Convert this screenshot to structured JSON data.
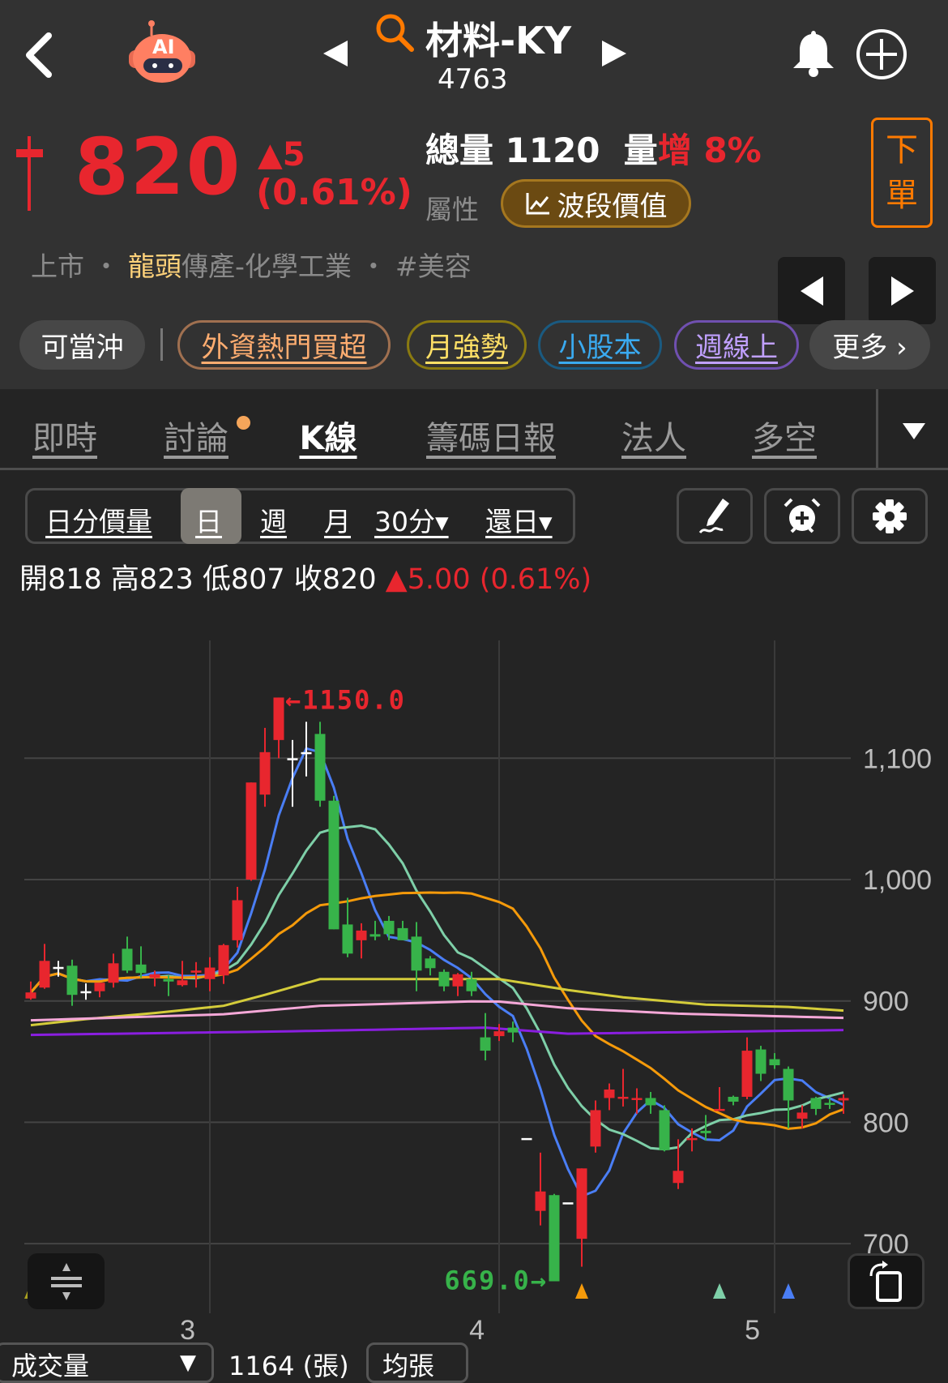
{
  "header": {
    "title": "材料-KY",
    "code": "4763",
    "ai_label": "AI",
    "icons": [
      "back-icon",
      "ai-robot-icon",
      "prev-stock-icon",
      "search-icon",
      "next-stock-icon",
      "bell-icon",
      "add-circle-icon"
    ]
  },
  "quote": {
    "price": "820",
    "change": "▲5",
    "change_pct": "(0.61%)",
    "total_volume_label": "總量",
    "total_volume": "1120",
    "vol_inc_label_a": "量",
    "vol_inc_label_b": "增",
    "vol_inc_value": "8%",
    "attr_label": "屬性",
    "attr_button": "波段價值",
    "order_button": [
      "下",
      "單"
    ],
    "category": {
      "market": "上市",
      "sep": "・",
      "leader": "龍頭",
      "industry": "傳產-化學工業",
      "tag": "#美容"
    }
  },
  "chips": [
    {
      "label": "可當沖",
      "color": "#ffffff"
    },
    {
      "label": "外資熱門買超",
      "color": "#ffad70"
    },
    {
      "label": "月強勢",
      "color": "#ffe066"
    },
    {
      "label": "小股本",
      "color": "#3aaaf0"
    },
    {
      "label": "週線上",
      "color": "#c0a0ff"
    },
    {
      "label": "更多 ›",
      "color": "#ffffff"
    }
  ],
  "tabs": [
    {
      "label": "即時"
    },
    {
      "label": "討論",
      "dot": true
    },
    {
      "label": "K線",
      "active": true
    },
    {
      "label": "籌碼日報"
    },
    {
      "label": "法人"
    },
    {
      "label": "多空"
    }
  ],
  "period_selector": {
    "items": [
      "日分價量",
      "日",
      "週",
      "月",
      "30分▾",
      "還日▾"
    ],
    "selected": "日"
  },
  "ohlc": {
    "text": "開818 高823 低807 收820",
    "change": "▲5.00 (0.61%)"
  },
  "colors": {
    "up": "#e8262e",
    "down": "#37b34a",
    "flat": "#ffffff",
    "accent": "#ff7a00"
  },
  "chart_data": {
    "type": "candlestick",
    "y_ticks": [
      "1,100",
      "1,000",
      "900",
      "800",
      "700"
    ],
    "y_tick_values": [
      1100,
      1000,
      900,
      800,
      700
    ],
    "ylim": [
      669,
      1150
    ],
    "x_month_labels": [
      {
        "label": "3",
        "candle": 14
      },
      {
        "label": "4",
        "candle": 35
      },
      {
        "label": "5",
        "candle": 55
      }
    ],
    "grid": true,
    "candles_ohlc": [
      [
        902,
        916,
        901,
        907
      ],
      [
        911,
        947,
        910,
        933
      ],
      [
        928,
        933,
        920,
        928
      ],
      [
        929,
        934,
        896,
        905
      ],
      [
        908,
        914.5,
        901,
        908
      ],
      [
        908,
        915,
        903,
        915
      ],
      [
        915,
        939,
        911,
        931
      ],
      [
        943,
        953,
        923,
        925
      ],
      [
        930,
        945,
        919,
        923
      ],
      [
        919,
        925,
        912,
        922
      ],
      [
        918,
        921,
        904,
        916
      ],
      [
        913,
        933,
        912,
        917
      ],
      [
        924,
        932,
        911,
        925
      ],
      [
        918,
        936,
        908,
        927.5
      ],
      [
        921,
        947,
        914,
        946
      ],
      [
        950,
        994,
        944,
        983
      ],
      [
        1000,
        1080,
        999,
        1080
      ],
      [
        1070,
        1125,
        1060,
        1105
      ],
      [
        1115,
        1150,
        1100,
        1150
      ],
      [
        1100,
        1115,
        1060,
        1100
      ],
      [
        1105,
        1130,
        1085,
        1105
      ],
      [
        1120,
        1130,
        1060,
        1065
      ],
      [
        1065,
        1069,
        959,
        959
      ],
      [
        963,
        985,
        936,
        939
      ],
      [
        950,
        964,
        935,
        958
      ],
      [
        955,
        966,
        950,
        953
      ],
      [
        966,
        970,
        950,
        955
      ],
      [
        960,
        966,
        950,
        950
      ],
      [
        953,
        965,
        908,
        925
      ],
      [
        935,
        937,
        921,
        927
      ],
      [
        924,
        926,
        908,
        912
      ],
      [
        912,
        923,
        904,
        922
      ],
      [
        918,
        924,
        904,
        908
      ],
      [
        870,
        890,
        851,
        859
      ],
      [
        871,
        881,
        867,
        875
      ],
      [
        878,
        883,
        866,
        874
      ],
      [
        787,
        787,
        787,
        787
      ],
      [
        727,
        775,
        715,
        743
      ],
      [
        740,
        741,
        669,
        669
      ],
      [
        734,
        734,
        734,
        734
      ],
      [
        704,
        762,
        681,
        762
      ],
      [
        780,
        818,
        775,
        810
      ],
      [
        820,
        832,
        810,
        827
      ],
      [
        820,
        844,
        813,
        821
      ],
      [
        819,
        828,
        807,
        820
      ],
      [
        820,
        825,
        807,
        814
      ],
      [
        810,
        814,
        776,
        777
      ],
      [
        750,
        786,
        745,
        760
      ],
      [
        786,
        795,
        776,
        787
      ],
      [
        793,
        806,
        785,
        791
      ],
      [
        810,
        829,
        810,
        811
      ],
      [
        821,
        822,
        814,
        817
      ],
      [
        821,
        870,
        819,
        859
      ],
      [
        860,
        863,
        834,
        840
      ],
      [
        852,
        857,
        844,
        847
      ],
      [
        844,
        846,
        795,
        818
      ],
      [
        803,
        814,
        795,
        808
      ],
      [
        820,
        821,
        806,
        811
      ],
      [
        816,
        820,
        811,
        815
      ],
      [
        818,
        823,
        807,
        820
      ]
    ],
    "moving_averages": [
      {
        "color": "#4a7ef5",
        "period": 5
      },
      {
        "color": "#7ecfa8",
        "period": 10
      },
      {
        "color": "#f59a0a",
        "period": 20
      },
      {
        "color": "#d4cc3a",
        "points": [
          [
            1,
            880
          ],
          [
            5,
            885
          ],
          [
            10,
            890
          ],
          [
            15,
            896
          ],
          [
            18,
            905
          ],
          [
            22,
            918
          ],
          [
            35,
            918
          ],
          [
            40,
            909
          ],
          [
            44,
            903
          ],
          [
            50,
            897
          ],
          [
            56,
            895
          ],
          [
            60,
            892
          ]
        ]
      },
      {
        "color": "#f5a8d8",
        "points": [
          [
            1,
            884
          ],
          [
            15,
            889
          ],
          [
            22,
            896
          ],
          [
            33,
            899.6
          ],
          [
            35,
            899.5
          ],
          [
            40,
            894
          ],
          [
            48,
            889.5
          ],
          [
            60,
            886
          ]
        ]
      },
      {
        "color": "#8a1ee0",
        "points": [
          [
            1,
            872
          ],
          [
            20,
            875
          ],
          [
            34,
            878
          ],
          [
            40,
            873
          ],
          [
            60,
            876
          ]
        ]
      }
    ],
    "annotations": [
      {
        "text": "1150.0",
        "candle": 19,
        "arrow": "←",
        "color": "#e8262e"
      },
      {
        "text": "669.0",
        "candle": 39,
        "arrow": "→",
        "color": "#37b34a"
      }
    ],
    "signal_markers": [
      {
        "candle": 1,
        "color": "#a8a020"
      },
      {
        "candle": 41,
        "color": "#f59a0a"
      },
      {
        "candle": 51,
        "color": "#7ecfa8"
      },
      {
        "candle": 56,
        "color": "#4a7ef5"
      }
    ]
  },
  "volume_bar": {
    "selector": "成交量",
    "selector_arrow": "▼",
    "value": "1164 (張)",
    "avg_button": "均張"
  }
}
